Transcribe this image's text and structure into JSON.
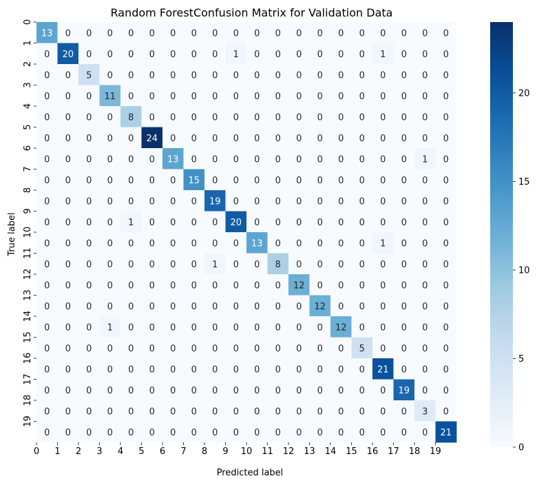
{
  "chart_data": {
    "type": "heatmap",
    "title": "Random ForestConfusion Matrix for Validation Data",
    "xlabel": "Predicted label",
    "ylabel": "True label",
    "x_tick_labels": [
      "0",
      "1",
      "2",
      "3",
      "4",
      "5",
      "6",
      "7",
      "8",
      "9",
      "10",
      "11",
      "12",
      "13",
      "14",
      "15",
      "16",
      "17",
      "18",
      "19"
    ],
    "y_tick_labels": [
      "0",
      "1",
      "2",
      "3",
      "4",
      "5",
      "6",
      "7",
      "8",
      "9",
      "10",
      "11",
      "12",
      "13",
      "14",
      "15",
      "16",
      "17",
      "18",
      "19"
    ],
    "matrix": [
      [
        13,
        0,
        0,
        0,
        0,
        0,
        0,
        0,
        0,
        0,
        0,
        0,
        0,
        0,
        0,
        0,
        0,
        0,
        0,
        0
      ],
      [
        0,
        20,
        0,
        0,
        0,
        0,
        0,
        0,
        0,
        1,
        0,
        0,
        0,
        0,
        0,
        0,
        1,
        0,
        0,
        0
      ],
      [
        0,
        0,
        5,
        0,
        0,
        0,
        0,
        0,
        0,
        0,
        0,
        0,
        0,
        0,
        0,
        0,
        0,
        0,
        0,
        0
      ],
      [
        0,
        0,
        0,
        11,
        0,
        0,
        0,
        0,
        0,
        0,
        0,
        0,
        0,
        0,
        0,
        0,
        0,
        0,
        0,
        0
      ],
      [
        0,
        0,
        0,
        0,
        8,
        0,
        0,
        0,
        0,
        0,
        0,
        0,
        0,
        0,
        0,
        0,
        0,
        0,
        0,
        0
      ],
      [
        0,
        0,
        0,
        0,
        0,
        24,
        0,
        0,
        0,
        0,
        0,
        0,
        0,
        0,
        0,
        0,
        0,
        0,
        0,
        0
      ],
      [
        0,
        0,
        0,
        0,
        0,
        0,
        13,
        0,
        0,
        0,
        0,
        0,
        0,
        0,
        0,
        0,
        0,
        0,
        1,
        0
      ],
      [
        0,
        0,
        0,
        0,
        0,
        0,
        0,
        15,
        0,
        0,
        0,
        0,
        0,
        0,
        0,
        0,
        0,
        0,
        0,
        0
      ],
      [
        0,
        0,
        0,
        0,
        0,
        0,
        0,
        0,
        19,
        0,
        0,
        0,
        0,
        0,
        0,
        0,
        0,
        0,
        0,
        0
      ],
      [
        0,
        0,
        0,
        0,
        1,
        0,
        0,
        0,
        0,
        20,
        0,
        0,
        0,
        0,
        0,
        0,
        0,
        0,
        0,
        0
      ],
      [
        0,
        0,
        0,
        0,
        0,
        0,
        0,
        0,
        0,
        0,
        13,
        0,
        0,
        0,
        0,
        0,
        1,
        0,
        0,
        0
      ],
      [
        0,
        0,
        0,
        0,
        0,
        0,
        0,
        0,
        1,
        0,
        0,
        8,
        0,
        0,
        0,
        0,
        0,
        0,
        0,
        0
      ],
      [
        0,
        0,
        0,
        0,
        0,
        0,
        0,
        0,
        0,
        0,
        0,
        0,
        12,
        0,
        0,
        0,
        0,
        0,
        0,
        0
      ],
      [
        0,
        0,
        0,
        0,
        0,
        0,
        0,
        0,
        0,
        0,
        0,
        0,
        0,
        12,
        0,
        0,
        0,
        0,
        0,
        0
      ],
      [
        0,
        0,
        0,
        1,
        0,
        0,
        0,
        0,
        0,
        0,
        0,
        0,
        0,
        0,
        12,
        0,
        0,
        0,
        0,
        0
      ],
      [
        0,
        0,
        0,
        0,
        0,
        0,
        0,
        0,
        0,
        0,
        0,
        0,
        0,
        0,
        0,
        5,
        0,
        0,
        0,
        0
      ],
      [
        0,
        0,
        0,
        0,
        0,
        0,
        0,
        0,
        0,
        0,
        0,
        0,
        0,
        0,
        0,
        0,
        21,
        0,
        0,
        0
      ],
      [
        0,
        0,
        0,
        0,
        0,
        0,
        0,
        0,
        0,
        0,
        0,
        0,
        0,
        0,
        0,
        0,
        0,
        19,
        0,
        0
      ],
      [
        0,
        0,
        0,
        0,
        0,
        0,
        0,
        0,
        0,
        0,
        0,
        0,
        0,
        0,
        0,
        0,
        0,
        0,
        3,
        0
      ],
      [
        0,
        0,
        0,
        0,
        0,
        0,
        0,
        0,
        0,
        0,
        0,
        0,
        0,
        0,
        0,
        0,
        0,
        0,
        0,
        21
      ]
    ],
    "colormap": "Blues",
    "color_low": "#f7fbff",
    "color_high": "#08306b",
    "vmin": 0,
    "vmax": 24,
    "colorbar_ticks": [
      "0",
      "5",
      "10",
      "15",
      "20"
    ],
    "grid": false,
    "legend": "colorbar-right"
  }
}
